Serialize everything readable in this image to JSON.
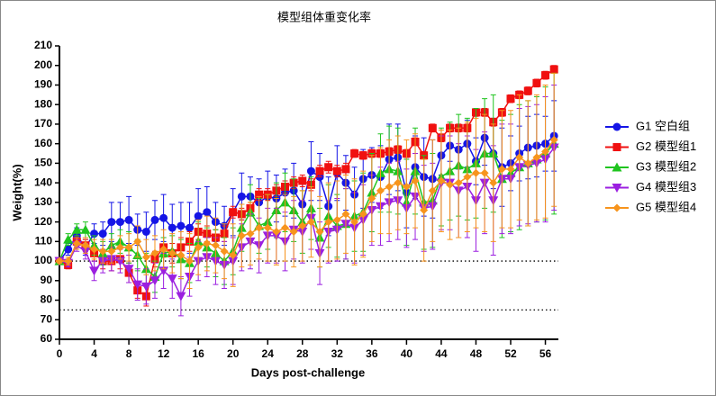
{
  "chart_data": {
    "type": "line",
    "title": "模型组体重变化率",
    "xlabel": "Days post-challenge",
    "ylabel": "Weight(%)",
    "x": [
      0,
      1,
      2,
      3,
      4,
      5,
      6,
      7,
      8,
      9,
      10,
      11,
      12,
      13,
      14,
      15,
      16,
      17,
      18,
      19,
      20,
      21,
      22,
      23,
      24,
      25,
      26,
      27,
      28,
      29,
      30,
      31,
      32,
      33,
      34,
      35,
      36,
      37,
      38,
      39,
      40,
      41,
      42,
      43,
      44,
      45,
      46,
      47,
      48,
      49,
      50,
      51,
      52,
      53,
      54,
      55,
      56,
      57
    ],
    "xlim": [
      0,
      57.5
    ],
    "xticks": [
      0,
      4,
      8,
      12,
      16,
      20,
      24,
      28,
      32,
      36,
      40,
      44,
      48,
      52,
      56
    ],
    "ylim": [
      60,
      210
    ],
    "yticks": [
      60,
      70,
      80,
      90,
      100,
      110,
      120,
      130,
      140,
      150,
      160,
      170,
      180,
      190,
      200,
      210
    ],
    "reference_lines": [
      100,
      75
    ],
    "legend": "right",
    "series": [
      {
        "name": "G1 空白组",
        "color": "#1515e6",
        "marker": "circle",
        "values": [
          100,
          106,
          113,
          107,
          114,
          114,
          120,
          120,
          121,
          116,
          115,
          121,
          122,
          117,
          118,
          117,
          123,
          125,
          120,
          118,
          125,
          133,
          133,
          130,
          133,
          132,
          135,
          136,
          129,
          146,
          143,
          128,
          145,
          140,
          134,
          142,
          144,
          143,
          152,
          153,
          135,
          148,
          143,
          142,
          154,
          159,
          157,
          160,
          151,
          163,
          155,
          148,
          150,
          155,
          158,
          159,
          160,
          164
        ],
        "errors": [
          1,
          3,
          4,
          4,
          5,
          6,
          10,
          10,
          12,
          8,
          10,
          10,
          12,
          12,
          12,
          13,
          14,
          13,
          10,
          10,
          12,
          12,
          10,
          12,
          13,
          12,
          12,
          14,
          12,
          15,
          12,
          15,
          14,
          14,
          14,
          15,
          14,
          16,
          18,
          17,
          18,
          16,
          20,
          20,
          10,
          8,
          10,
          12,
          12,
          14,
          18,
          20,
          14,
          14,
          16,
          16,
          14,
          18
        ]
      },
      {
        "name": "G2 模型组1",
        "color": "#f01010",
        "marker": "square",
        "values": [
          100,
          98,
          110,
          108,
          104,
          100,
          100,
          101,
          94,
          85,
          82,
          101,
          107,
          104,
          107,
          110,
          115,
          114,
          112,
          114,
          125,
          124,
          127,
          134,
          134,
          136,
          138,
          140,
          141,
          139,
          146,
          148,
          146,
          147,
          155,
          154,
          155,
          155,
          156,
          157,
          155,
          161,
          154,
          168,
          163,
          168,
          168,
          168,
          176,
          176,
          171,
          176,
          183,
          185,
          187,
          191,
          195,
          198
        ],
        "errors": [
          1,
          2,
          3,
          3,
          4,
          4,
          5,
          5,
          5,
          4,
          5,
          4,
          5,
          5,
          5,
          5,
          4,
          4,
          4,
          4,
          3,
          3,
          3,
          3,
          3,
          3,
          3,
          3,
          3,
          3,
          3,
          3,
          3,
          3,
          2,
          2,
          2,
          2,
          2,
          2,
          2,
          2,
          2,
          2,
          2,
          2,
          2,
          2,
          2,
          2,
          2,
          2,
          2,
          2,
          2,
          2,
          2,
          2
        ]
      },
      {
        "name": "G3 模型组2",
        "color": "#1fc41f",
        "marker": "triangle-up",
        "values": [
          100,
          111,
          116,
          116,
          108,
          104,
          108,
          110,
          107,
          103,
          96,
          92,
          104,
          105,
          101,
          99,
          110,
          107,
          104,
          100,
          105,
          117,
          125,
          118,
          120,
          126,
          130,
          126,
          120,
          127,
          112,
          123,
          118,
          119,
          123,
          125,
          135,
          145,
          147,
          146,
          130,
          146,
          130,
          131,
          143,
          146,
          149,
          147,
          150,
          155,
          155,
          142,
          145,
          148,
          150,
          152,
          155,
          160
        ],
        "errors": [
          1,
          3,
          3,
          4,
          5,
          6,
          6,
          6,
          8,
          8,
          8,
          8,
          8,
          8,
          10,
          10,
          10,
          10,
          12,
          12,
          12,
          12,
          14,
          14,
          14,
          14,
          15,
          16,
          16,
          16,
          15,
          16,
          16,
          18,
          18,
          20,
          20,
          20,
          22,
          22,
          22,
          22,
          24,
          24,
          25,
          25,
          26,
          26,
          28,
          28,
          30,
          30,
          30,
          32,
          32,
          32,
          34,
          36
        ]
      },
      {
        "name": "G4 模型组3",
        "color": "#9b1fe0",
        "marker": "triangle-down",
        "values": [
          100,
          99,
          108,
          105,
          95,
          100,
          101,
          100,
          96,
          88,
          87,
          90,
          95,
          91,
          82,
          92,
          100,
          102,
          100,
          98,
          100,
          107,
          110,
          108,
          113,
          113,
          110,
          116,
          115,
          122,
          104,
          115,
          116,
          119,
          117,
          121,
          126,
          128,
          130,
          131,
          127,
          133,
          127,
          128,
          140,
          140,
          136,
          138,
          131,
          140,
          131,
          142,
          142,
          148,
          149,
          150,
          152,
          158
        ],
        "errors": [
          1,
          2,
          3,
          4,
          5,
          6,
          6,
          6,
          7,
          8,
          9,
          9,
          9,
          10,
          10,
          10,
          10,
          10,
          12,
          12,
          12,
          12,
          14,
          14,
          14,
          14,
          15,
          15,
          16,
          16,
          16,
          16,
          16,
          18,
          18,
          18,
          18,
          20,
          20,
          20,
          20,
          22,
          22,
          22,
          24,
          24,
          24,
          26,
          26,
          26,
          28,
          28,
          28,
          30,
          30,
          30,
          32,
          32
        ]
      },
      {
        "name": "G5 模型组4",
        "color": "#f7941d",
        "marker": "diamond",
        "values": [
          100,
          100,
          109,
          108,
          106,
          105,
          105,
          107,
          107,
          110,
          102,
          104,
          106,
          104,
          103,
          100,
          107,
          109,
          108,
          105,
          103,
          113,
          114,
          117,
          117,
          115,
          117,
          115,
          118,
          120,
          115,
          120,
          121,
          124,
          120,
          124,
          132,
          136,
          138,
          140,
          138,
          141,
          126,
          136,
          141,
          139,
          140,
          143,
          145,
          145,
          140,
          147,
          147,
          153,
          150,
          153,
          156,
          162
        ],
        "errors": [
          1,
          2,
          3,
          4,
          5,
          6,
          6,
          6,
          7,
          8,
          9,
          9,
          10,
          10,
          12,
          14,
          14,
          14,
          14,
          14,
          16,
          16,
          16,
          16,
          17,
          17,
          17,
          18,
          18,
          18,
          18,
          20,
          20,
          20,
          22,
          22,
          22,
          22,
          24,
          24,
          24,
          24,
          26,
          26,
          26,
          28,
          28,
          28,
          28,
          30,
          30,
          30,
          30,
          32,
          32,
          32,
          34,
          34
        ]
      }
    ]
  }
}
